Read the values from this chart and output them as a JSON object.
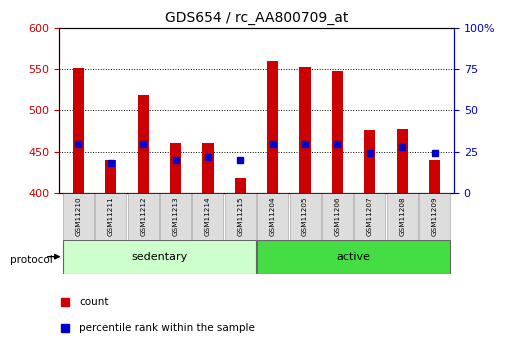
{
  "title": "GDS654 / rc_AA800709_at",
  "samples": [
    "GSM11210",
    "GSM11211",
    "GSM11212",
    "GSM11213",
    "GSM11214",
    "GSM11215",
    "GSM11204",
    "GSM11205",
    "GSM11206",
    "GSM11207",
    "GSM11208",
    "GSM11209"
  ],
  "groups": [
    "sedentary",
    "sedentary",
    "sedentary",
    "sedentary",
    "sedentary",
    "sedentary",
    "active",
    "active",
    "active",
    "active",
    "active",
    "active"
  ],
  "counts": [
    551,
    440,
    518,
    461,
    461,
    418,
    560,
    552,
    548,
    476,
    478,
    440
  ],
  "percentiles": [
    30,
    18,
    30,
    20,
    22,
    20,
    30,
    30,
    30,
    24,
    28,
    24
  ],
  "ylim_left": [
    400,
    600
  ],
  "ylim_right": [
    0,
    100
  ],
  "yticks_left": [
    400,
    450,
    500,
    550,
    600
  ],
  "yticks_right": [
    0,
    25,
    50,
    75,
    100
  ],
  "bar_color": "#cc0000",
  "percentile_color": "#0000cc",
  "sedentary_color": "#ccffcc",
  "active_color": "#44dd44",
  "group_label_sedentary": "sedentary",
  "group_label_active": "active",
  "protocol_label": "protocol",
  "legend_count": "count",
  "legend_percentile": "percentile rank within the sample",
  "title_fontsize": 10,
  "tick_label_color_left": "#cc0000",
  "tick_label_color_right": "#0000cc",
  "bar_width": 0.35,
  "base_value": 400,
  "sample_box_color": "#dddddd",
  "sample_box_edge": "#aaaaaa"
}
